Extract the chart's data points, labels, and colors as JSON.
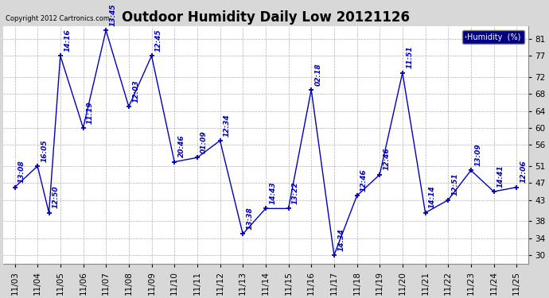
{
  "title": "Outdoor Humidity Daily Low 20121126",
  "copyright_text": "Copyright 2012 Cartronics.com",
  "legend_label": "Humidity  (%)",
  "x_ticks": [
    "11/03",
    "11/04",
    "11/05",
    "11/06",
    "11/07",
    "11/08",
    "11/09",
    "11/10",
    "11/11",
    "11/12",
    "11/13",
    "11/14",
    "11/15",
    "11/16",
    "11/17",
    "11/18",
    "11/19",
    "11/20",
    "11/21",
    "11/22",
    "11/23",
    "11/24",
    "11/25"
  ],
  "x_positions": [
    0,
    1,
    1.5,
    2,
    3,
    4,
    5,
    6,
    7,
    8,
    9,
    10,
    11,
    12,
    13,
    14,
    15,
    16,
    17,
    18,
    19,
    20,
    21,
    22
  ],
  "y_values": [
    46,
    51,
    40,
    77,
    60,
    83,
    65,
    77,
    52,
    53,
    57,
    35,
    41,
    41,
    69,
    30,
    44,
    49,
    73,
    40,
    43,
    50,
    45,
    46
  ],
  "time_labels": [
    "13:08",
    "16:05",
    "12:50",
    "14:16",
    "11:19",
    "13:45",
    "12:03",
    "12:45",
    "20:46",
    "01:09",
    "12:34",
    "13:38",
    "14:43",
    "13:22",
    "02:18",
    "14:34",
    "12:46",
    "12:46",
    "11:51",
    "14:14",
    "12:51",
    "13:09",
    "14:41",
    "12:06"
  ],
  "day_tick_positions": [
    0,
    1,
    2,
    3,
    4,
    5,
    6,
    7,
    8,
    9,
    10,
    11,
    12,
    13,
    14,
    15,
    16,
    17,
    18,
    19,
    20,
    21,
    22
  ],
  "yticks": [
    30,
    34,
    38,
    43,
    47,
    51,
    56,
    60,
    64,
    68,
    72,
    77,
    81
  ],
  "ylim": [
    28,
    84
  ],
  "xlim": [
    -0.5,
    22.5
  ],
  "line_color": "#0000BB",
  "bg_color": "#d8d8d8",
  "plot_bg": "#ffffff",
  "grid_color": "#aaaaaa",
  "title_fontsize": 12,
  "annot_fontsize": 6.5,
  "tick_fontsize": 7.5,
  "copyright_fontsize": 6
}
